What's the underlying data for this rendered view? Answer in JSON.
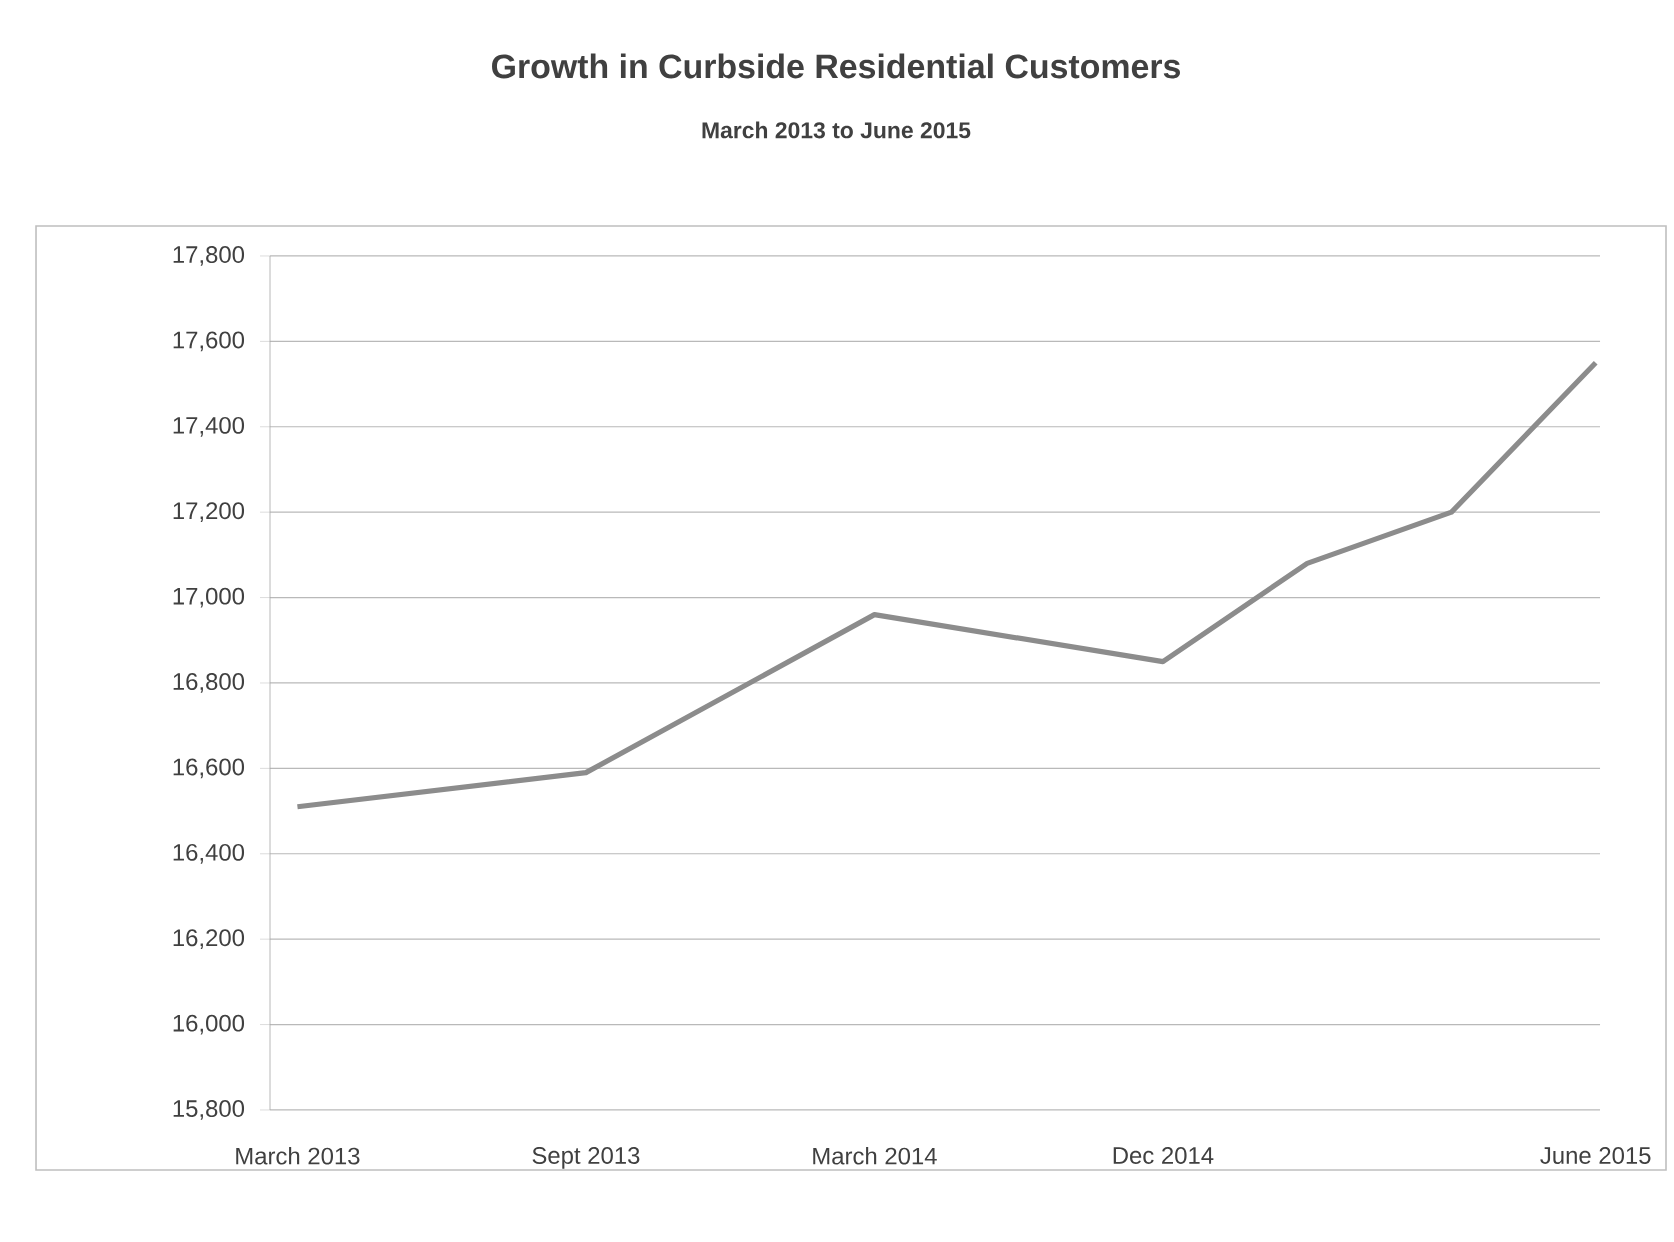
{
  "chart_data": {
    "type": "line",
    "title": "Growth in Curbside Residential Customers",
    "subtitle": "March 2013 to June 2015",
    "categories": [
      "March 2013",
      null,
      "Sept 2013",
      null,
      "March 2014",
      null,
      "Dec 2014",
      null,
      null,
      "June 2015"
    ],
    "series": [
      {
        "color": "#8c8c8c",
        "values": [
          16510,
          null,
          16590,
          null,
          16960,
          null,
          16850,
          17080,
          17200,
          17550
        ]
      }
    ],
    "ylim": [
      15800,
      17800
    ],
    "yticks": [
      {
        "value": 15800,
        "label": "15,800"
      },
      {
        "value": 16000,
        "label": "16,000"
      },
      {
        "value": 16200,
        "label": "16,200"
      },
      {
        "value": 16400,
        "label": "16,400"
      },
      {
        "value": 16600,
        "label": "16,600"
      },
      {
        "value": 16800,
        "label": "16,800"
      },
      {
        "value": 17000,
        "label": "17,000"
      },
      {
        "value": 17200,
        "label": "17,200"
      },
      {
        "value": 17400,
        "label": "17,400"
      },
      {
        "value": 17600,
        "label": "17,600"
      },
      {
        "value": 17800,
        "label": "17,800"
      }
    ],
    "grid": "y",
    "marker": "none",
    "line_style": "solid"
  }
}
